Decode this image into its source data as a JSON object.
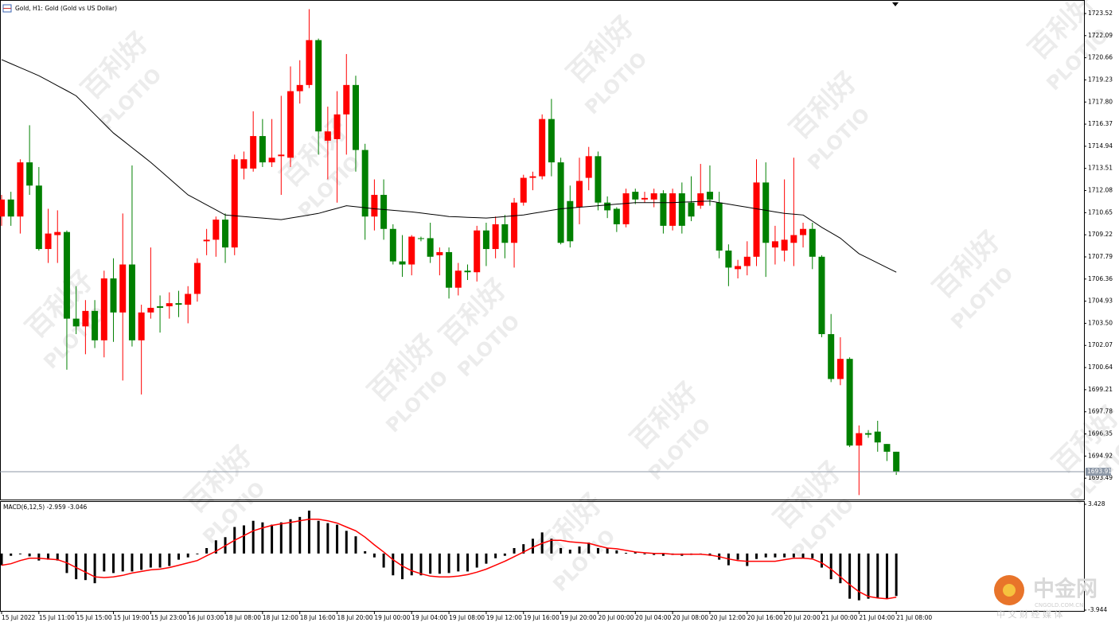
{
  "chart_data": [
    {
      "type": "candlestick",
      "title": "Gold, H1: Gold (Gold vs US Dollar)",
      "categories": [
        "15 Jul 2022",
        null,
        null,
        null,
        "15 Jul 11:00",
        null,
        null,
        null,
        "15 Jul 15:00",
        null,
        null,
        null,
        "15 Jul 19:00",
        null,
        null,
        null,
        "15 Jul 23:00",
        null,
        null,
        null,
        "16 Jul 03:00",
        null,
        null,
        null,
        "18 Jul 08:00",
        null,
        null,
        null,
        "18 Jul 12:00",
        null,
        null,
        null,
        "18 Jul 16:00",
        null,
        null,
        null,
        "18 Jul 20:00",
        null,
        null,
        null,
        "19 Jul 00:00",
        null,
        null,
        null,
        "19 Jul 04:00",
        null,
        null,
        null,
        "19 Jul 08:00",
        null,
        null,
        null,
        "19 Jul 12:00",
        null,
        null,
        null,
        "19 Jul 16:00",
        null,
        null,
        null,
        "19 Jul 20:00",
        null,
        null,
        null,
        "20 Jul 00:00",
        null,
        null,
        null,
        "20 Jul 04:00",
        null,
        null,
        null,
        "20 Jul 08:00",
        null,
        null,
        null,
        "20 Jul 12:00",
        null,
        null,
        null,
        "20 Jul 16:00",
        null,
        null,
        null,
        "20 Jul 20:00",
        null,
        null,
        null,
        "21 Jul 00:00",
        null,
        null,
        null,
        "21 Jul 04:00",
        null,
        null,
        null,
        "21 Jul 08:00"
      ],
      "open": [
        1710.4,
        1711.5,
        1710.4,
        1713.9,
        1712.4,
        1708.3,
        1709.2,
        1709.4,
        1703.8,
        1703.3,
        1704.3,
        1702.4,
        1706.4,
        1704.2,
        1707.3,
        1702.4,
        1704.2,
        1704.6,
        1704.6,
        1704.8,
        1704.7,
        1705.4,
        1708.8,
        1708.9,
        1710.2,
        1708.4,
        1713.5,
        1713.5,
        1715.6,
        1713.9,
        1714.3,
        1714.2,
        1718.5,
        1718.9,
        1721.8,
        1715.3,
        1715.4,
        1717.0,
        1718.9,
        1714.7,
        1710.4,
        1711.8,
        1709.6,
        1707.5,
        1707.3,
        1709.0,
        1709.0,
        1707.9,
        1708.1,
        1705.8,
        1706.9,
        1706.8,
        1709.5,
        1708.3,
        1709.9,
        1708.7,
        1711.3,
        1712.9,
        1713.0,
        1716.7,
        1713.9,
        1711.4,
        1711.0,
        1712.9,
        1714.3,
        1711.3,
        1710.9,
        1709.9,
        1712.0,
        1711.5,
        1711.5,
        1711.9,
        1709.8,
        1711.9,
        1711.3,
        1711.1,
        1712.0,
        1711.3,
        1708.2,
        1707.0,
        1707.2,
        1707.8,
        1712.6,
        1708.4,
        1708.2,
        1708.7,
        1709.2,
        1709.6,
        1707.8,
        1702.8,
        1699.9,
        1701.2,
        1695.6,
        1696.4,
        1696.5,
        1695.7,
        1695.2
      ],
      "high": [
        1711.8,
        1712.0,
        1714.1,
        1716.3,
        1713.6,
        1710.9,
        1710.8,
        1709.5,
        1705.9,
        1705.0,
        1705.0,
        1706.9,
        1707.7,
        1710.6,
        1713.7,
        1704.7,
        1708.4,
        1705.3,
        1705.5,
        1705.6,
        1705.9,
        1707.7,
        1709.6,
        1710.4,
        1710.6,
        1714.4,
        1714.6,
        1717.2,
        1716.7,
        1716.7,
        1718.2,
        1720.1,
        1720.5,
        1723.8,
        1721.9,
        1717.5,
        1718.5,
        1720.9,
        1719.5,
        1715.1,
        1712.8,
        1712.8,
        1709.9,
        1709.2,
        1709.2,
        1709.1,
        1710.0,
        1708.4,
        1708.4,
        1707.4,
        1707.3,
        1709.8,
        1710.0,
        1710.4,
        1710.5,
        1711.6,
        1713.1,
        1713.3,
        1717.0,
        1718.0,
        1714.2,
        1712.4,
        1714.2,
        1714.9,
        1714.6,
        1711.7,
        1711.0,
        1712.2,
        1712.2,
        1712.0,
        1712.2,
        1712.1,
        1712.2,
        1712.6,
        1713.0,
        1713.8,
        1713.7,
        1712.0,
        1708.6,
        1707.6,
        1708.8,
        1714.1,
        1713.9,
        1709.8,
        1712.8,
        1714.2,
        1710.0,
        1710.0,
        1707.9,
        1704.1,
        1702.6,
        1701.3,
        1696.9,
        1696.6,
        1697.2,
        1695.7,
        1695.2
      ],
      "low": [
        1709.8,
        1709.8,
        1709.3,
        1711.8,
        1708.2,
        1707.4,
        1707.4,
        1700.5,
        1702.8,
        1701.5,
        1701.9,
        1701.3,
        1702.3,
        1699.8,
        1702.0,
        1698.9,
        1703.8,
        1702.9,
        1703.8,
        1703.9,
        1703.5,
        1704.9,
        1707.9,
        1707.8,
        1707.4,
        1707.9,
        1712.8,
        1713.3,
        1713.6,
        1713.6,
        1711.8,
        1713.6,
        1717.7,
        1718.7,
        1714.4,
        1712.8,
        1711.3,
        1714.4,
        1713.3,
        1708.9,
        1709.5,
        1708.9,
        1707.3,
        1706.5,
        1706.6,
        1708.8,
        1707.4,
        1706.6,
        1705.1,
        1705.3,
        1706.3,
        1706.2,
        1707.2,
        1707.7,
        1707.7,
        1707.1,
        1711.1,
        1712.1,
        1712.8,
        1713.0,
        1708.6,
        1708.4,
        1709.9,
        1712.1,
        1710.8,
        1710.3,
        1709.4,
        1709.7,
        1711.2,
        1711.3,
        1711.0,
        1709.3,
        1709.5,
        1709.3,
        1710.1,
        1710.9,
        1711.1,
        1707.7,
        1705.9,
        1706.4,
        1706.6,
        1707.2,
        1706.5,
        1707.3,
        1707.5,
        1707.2,
        1708.4,
        1707.0,
        1702.6,
        1699.7,
        1699.5,
        1695.5,
        1692.4,
        1696.1,
        1695.2,
        1694.6,
        1693.7
      ],
      "close": [
        1711.5,
        1710.4,
        1713.9,
        1712.4,
        1708.3,
        1709.3,
        1709.4,
        1703.8,
        1703.3,
        1704.3,
        1702.4,
        1706.4,
        1704.2,
        1707.3,
        1702.4,
        1704.2,
        1704.5,
        1704.5,
        1704.8,
        1704.7,
        1705.4,
        1707.4,
        1708.9,
        1710.2,
        1708.4,
        1714.1,
        1714.1,
        1715.6,
        1713.9,
        1714.2,
        1714.4,
        1718.5,
        1718.9,
        1721.8,
        1715.9,
        1715.9,
        1717.0,
        1718.9,
        1714.7,
        1710.4,
        1711.8,
        1709.6,
        1707.5,
        1707.3,
        1709.1,
        1708.95,
        1707.8,
        1708.1,
        1705.8,
        1706.9,
        1706.8,
        1709.5,
        1708.3,
        1709.9,
        1708.7,
        1711.3,
        1712.9,
        1713.0,
        1716.7,
        1713.9,
        1708.7,
        1708.8,
        1712.7,
        1714.3,
        1711.3,
        1710.8,
        1709.9,
        1711.9,
        1711.5,
        1711.6,
        1711.9,
        1709.8,
        1711.9,
        1709.8,
        1710.4,
        1711.9,
        1711.5,
        1708.2,
        1707.1,
        1707.2,
        1707.8,
        1712.6,
        1708.7,
        1708.8,
        1708.9,
        1709.2,
        1709.6,
        1707.8,
        1702.8,
        1699.9,
        1701.2,
        1695.6,
        1696.4,
        1696.3,
        1695.8,
        1695.2,
        1693.91
      ],
      "up_color": "#ff0000",
      "down_color": "#008000",
      "ma": {
        "color": "#000000",
        "values": [
          1720.54,
          1720.28,
          1720.02,
          1719.76,
          1719.5,
          1719.18,
          1718.85,
          1718.53,
          1718.2,
          1717.6,
          1717.0,
          1716.4,
          1715.8,
          1715.33,
          1714.85,
          1714.38,
          1713.9,
          1713.38,
          1712.85,
          1712.33,
          1711.8,
          1711.48,
          1711.15,
          1710.83,
          1710.5,
          1710.45,
          1710.4,
          1710.35,
          1710.3,
          1710.25,
          1710.2,
          1710.3,
          1710.4,
          1710.5,
          1710.6,
          1710.77,
          1710.93,
          1711.1,
          1711.03,
          1710.97,
          1710.9,
          1710.85,
          1710.8,
          1710.75,
          1710.7,
          1710.63,
          1710.55,
          1710.48,
          1710.4,
          1710.38,
          1710.35,
          1710.33,
          1710.3,
          1710.35,
          1710.4,
          1710.45,
          1710.5,
          1710.6,
          1710.7,
          1710.8,
          1710.9,
          1710.95,
          1711.0,
          1711.05,
          1711.1,
          1711.15,
          1711.2,
          1711.25,
          1711.3,
          1711.3,
          1711.3,
          1711.3,
          1711.3,
          1711.33,
          1711.35,
          1711.38,
          1711.4,
          1711.3,
          1711.2,
          1711.1,
          1711.0,
          1710.9,
          1710.8,
          1710.7,
          1710.6,
          1710.55,
          1710.5,
          1710.1,
          1709.7,
          1709.35,
          1709.0,
          1708.5,
          1708.0,
          1707.7,
          1707.4,
          1707.1,
          1706.8
        ]
      },
      "last_price": 1693.91,
      "ylim": [
        1692.11,
        1724.29
      ],
      "yticks": [
        1723.52,
        1722.09,
        1720.66,
        1719.23,
        {
          "value": 1717.8,
          "label": "1717.80"
        },
        1716.37,
        1714.94,
        1713.51,
        1712.08,
        1710.65,
        1709.22,
        1707.79,
        1706.36,
        1704.93,
        {
          "value": 1703.5,
          "label": "1703.50"
        },
        1702.07,
        1700.64,
        1699.21,
        1697.78,
        1696.35,
        1694.92,
        1693.49
      ]
    },
    {
      "type": "macd",
      "title": "MACD(6,12,5) -2.959 -3.046",
      "histogram": {
        "color": "#000000",
        "values": [
          -0.82,
          -0.16,
          -0.05,
          -0.2,
          -0.49,
          -0.43,
          -0.49,
          -1.36,
          -1.79,
          -1.85,
          -2.07,
          -1.25,
          -1.36,
          -1.25,
          -1.25,
          -1.14,
          -0.98,
          -0.98,
          -0.87,
          -0.43,
          -0.27,
          -0.05,
          0.38,
          0.92,
          1.14,
          1.85,
          1.96,
          2.28,
          2.17,
          2.01,
          2.17,
          2.39,
          2.55,
          2.99,
          2.28,
          2.12,
          2.01,
          1.58,
          1.2,
          0.16,
          -0.27,
          -0.98,
          -1.52,
          -1.79,
          -1.52,
          -1.52,
          -1.41,
          -1.41,
          -1.36,
          -1.25,
          -1.25,
          -0.98,
          -0.71,
          -0.33,
          -0.16,
          0.38,
          0.65,
          1.03,
          1.47,
          1.03,
          0.38,
          0.27,
          0.49,
          0.76,
          0.38,
          0.38,
          0.22,
          0.05,
          0.1,
          -0.05,
          -0.1,
          -0.16,
          -0.1,
          -0.16,
          -0.1,
          -0.05,
          -0.16,
          -0.43,
          -0.82,
          -0.43,
          -0.87,
          -0.38,
          -0.27,
          -0.27,
          -0.27,
          -0.27,
          -0.33,
          -0.33,
          -0.98,
          -1.79,
          -2.07,
          -3.15,
          -3.26,
          -3.15,
          -3.1,
          -3.15,
          -2.959
        ]
      },
      "signal": {
        "color": "#ff0000",
        "values": [
          -0.82,
          -0.71,
          -0.49,
          -0.33,
          -0.33,
          -0.38,
          -0.43,
          -0.65,
          -0.98,
          -1.3,
          -1.63,
          -1.68,
          -1.63,
          -1.52,
          -1.36,
          -1.25,
          -1.14,
          -1.09,
          -0.98,
          -0.82,
          -0.65,
          -0.49,
          -0.16,
          0.16,
          0.54,
          0.92,
          1.25,
          1.58,
          1.79,
          1.96,
          2.07,
          2.17,
          2.28,
          2.39,
          2.39,
          2.28,
          2.12,
          1.85,
          1.58,
          1.14,
          0.6,
          0.11,
          -0.43,
          -0.87,
          -1.2,
          -1.41,
          -1.58,
          -1.63,
          -1.63,
          -1.58,
          -1.47,
          -1.3,
          -1.09,
          -0.82,
          -0.54,
          -0.22,
          0.11,
          0.43,
          0.71,
          0.92,
          0.92,
          0.82,
          0.76,
          0.71,
          0.54,
          0.38,
          0.33,
          0.22,
          0.11,
          0.05,
          0,
          0,
          -0.05,
          -0.05,
          -0.05,
          -0.05,
          -0.11,
          -0.22,
          -0.38,
          -0.49,
          -0.54,
          -0.54,
          -0.54,
          -0.54,
          -0.43,
          -0.33,
          -0.33,
          -0.38,
          -0.65,
          -1.09,
          -1.63,
          -2.17,
          -2.66,
          -2.99,
          -3.1,
          -3.15,
          -3.046
        ]
      },
      "ylim": [
        -4.0,
        3.65
      ],
      "yticks": [
        3.428,
        -3.944
      ]
    }
  ],
  "watermark": {
    "brand": "百利好",
    "name": "PLOTIO"
  },
  "logo": {
    "name": "中金网",
    "site": "CNGOLD.COM.CN",
    "slogan": "中 文 财 经 媒 体"
  }
}
